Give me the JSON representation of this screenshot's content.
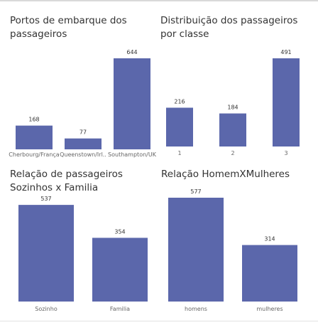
{
  "chart_data": [
    {
      "type": "bar",
      "title": "Portos de embarque dos passageiros",
      "categories": [
        "Cherbourg/França",
        "Queenstown/Irl..",
        "Southampton/UK"
      ],
      "values": [
        168,
        77,
        644
      ],
      "ylim": [
        0,
        644
      ],
      "grid": false,
      "bar_color": "#5b67ab"
    },
    {
      "type": "bar",
      "title": "Distribuição dos passageiros por classe",
      "categories": [
        "1",
        "2",
        "3"
      ],
      "values": [
        216,
        184,
        491
      ],
      "ylim": [
        0,
        491
      ],
      "grid": false,
      "bar_color": "#5b67ab"
    },
    {
      "type": "bar",
      "title": "Relação de passageiros Sozinhos x Familia",
      "categories": [
        "Sozinho",
        "Familia"
      ],
      "values": [
        537,
        354
      ],
      "ylim": [
        0,
        577
      ],
      "grid": false,
      "bar_color": "#5b67ab"
    },
    {
      "type": "bar",
      "title": "Relação HomemXMulheres",
      "categories": [
        "homens",
        "mulheres"
      ],
      "values": [
        577,
        314
      ],
      "ylim": [
        0,
        577
      ],
      "grid": false,
      "bar_color": "#5b67ab"
    }
  ]
}
